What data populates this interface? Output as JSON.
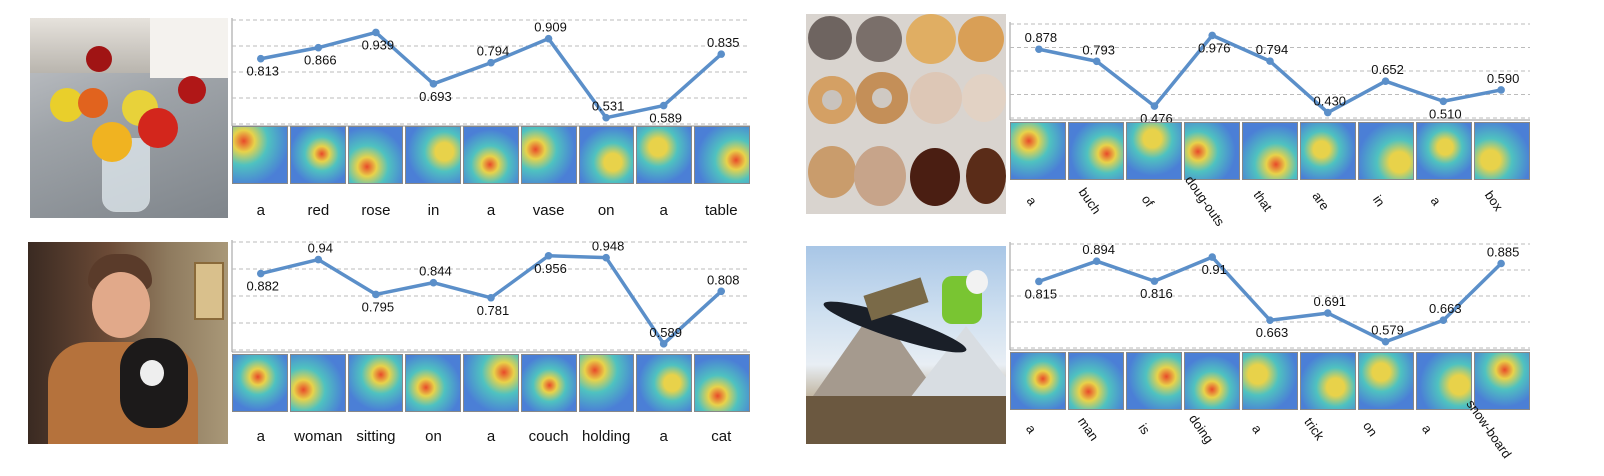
{
  "chart_data": [
    {
      "type": "line",
      "categories": [
        "a",
        "red",
        "rose",
        "in",
        "a",
        "vase",
        "on",
        "a",
        "table"
      ],
      "values": [
        0.813,
        0.866,
        0.939,
        0.693,
        0.794,
        0.909,
        0.531,
        0.589,
        0.835
      ],
      "value_labels": [
        "0.813",
        "0.866",
        "0.939",
        "0.693",
        "0.794",
        "0.909",
        "0.531",
        "0.589",
        "0.835"
      ],
      "ylim": [
        0.52,
        0.96
      ],
      "grid": true,
      "line_color": "#5b8fc9",
      "heatmap_colors": [
        "#4b7fd6",
        "#4fc2c0",
        "#e8d24a",
        "#e84a2a"
      ],
      "photo": "flowers-in-vase"
    },
    {
      "type": "line",
      "categories": [
        "a",
        "buch",
        "of",
        "doug-\nouts",
        "that",
        "are",
        "in",
        "a",
        "box"
      ],
      "values": [
        0.878,
        0.793,
        0.476,
        0.976,
        0.794,
        0.43,
        0.652,
        0.51,
        0.59
      ],
      "value_labels": [
        "0.878",
        "0.793",
        "0.476",
        "0.976",
        "0.794",
        "0.430",
        "0.652",
        "0.510",
        "0.590"
      ],
      "ylim": [
        0.42,
        1.0
      ],
      "grid": true,
      "line_color": "#5b8fc9",
      "heatmap_colors": [
        "#4b7fd6",
        "#4fc2c0",
        "#e8d24a",
        "#e84a2a"
      ],
      "photo": "donuts"
    },
    {
      "type": "line",
      "categories": [
        "a",
        "woman",
        "sitting",
        "on",
        "a",
        "couch",
        "holding",
        "a",
        "cat"
      ],
      "values": [
        0.882,
        0.94,
        0.795,
        0.844,
        0.781,
        0.956,
        0.948,
        0.589,
        0.808
      ],
      "value_labels": [
        "0.882",
        "0.94",
        "0.795",
        "0.844",
        "0.781",
        "0.956",
        "0.948",
        "0.589",
        "0.808"
      ],
      "ylim": [
        0.58,
        0.98
      ],
      "grid": true,
      "line_color": "#5b8fc9",
      "heatmap_colors": [
        "#4b7fd6",
        "#4fc2c0",
        "#e8d24a",
        "#e84a2a"
      ],
      "photo": "woman-with-cat"
    },
    {
      "type": "line",
      "categories": [
        "a",
        "man",
        "is",
        "doing",
        "a",
        "trick",
        "on",
        "a",
        "snow-\nboard"
      ],
      "values": [
        0.815,
        0.894,
        0.816,
        0.91,
        0.663,
        0.691,
        0.579,
        0.663,
        0.885
      ],
      "value_labels": [
        "0.815",
        "0.894",
        "0.816",
        "0.91",
        "0.663",
        "0.691",
        "0.579",
        "0.663",
        "0.885"
      ],
      "ylim": [
        0.57,
        0.93
      ],
      "grid": true,
      "line_color": "#5b8fc9",
      "heatmap_colors": [
        "#4b7fd6",
        "#4fc2c0",
        "#e8d24a",
        "#e84a2a"
      ],
      "photo": "snowboarder"
    }
  ]
}
